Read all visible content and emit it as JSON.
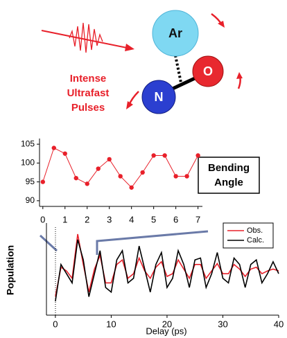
{
  "diagram": {
    "atoms": [
      "Ar",
      "N",
      "O"
    ],
    "pulse_label": [
      "Intense",
      "Ultrafast",
      "Pulses"
    ]
  },
  "chart_data": [
    {
      "type": "line",
      "color": "#e8202a",
      "markers": true,
      "x": [
        0,
        0.5,
        1,
        1.5,
        2,
        2.5,
        3,
        3.5,
        4,
        4.5,
        5,
        5.5,
        6,
        6.5,
        7
      ],
      "values": [
        95,
        104,
        102.5,
        96,
        94.5,
        98.5,
        101,
        96.5,
        93.5,
        97.5,
        102,
        102,
        96.5,
        96.5,
        102
      ],
      "xlim": [
        -0.15,
        7.2
      ],
      "ylim": [
        88.5,
        106.5
      ],
      "xticks": [
        0,
        1,
        2,
        3,
        4,
        5,
        6,
        7
      ],
      "yticks": [
        90,
        95,
        100,
        105
      ],
      "annotation": [
        "Bending",
        "Angle"
      ]
    },
    {
      "type": "line",
      "xlabel": "Delay (ps)",
      "ylabel": "Population",
      "legend": "upper right",
      "x": [
        0,
        1,
        2,
        3,
        4,
        5,
        6,
        7,
        8,
        9,
        10,
        11,
        12,
        13,
        14,
        15,
        16,
        17,
        18,
        19,
        20,
        21,
        22,
        23,
        24,
        25,
        26,
        27,
        28,
        29,
        30,
        31,
        32,
        33,
        34,
        35,
        36,
        37,
        38,
        39,
        40
      ],
      "series": [
        {
          "name": "Obs.",
          "color": "#e8202a",
          "values": [
            0.2,
            0.52,
            0.48,
            0.4,
            0.88,
            0.55,
            0.25,
            0.5,
            0.65,
            0.35,
            0.35,
            0.55,
            0.6,
            0.4,
            0.45,
            0.62,
            0.48,
            0.4,
            0.52,
            0.58,
            0.42,
            0.45,
            0.6,
            0.5,
            0.4,
            0.55,
            0.55,
            0.4,
            0.48,
            0.56,
            0.45,
            0.45,
            0.55,
            0.5,
            0.42,
            0.5,
            0.52,
            0.45,
            0.48,
            0.5,
            0.48
          ]
        },
        {
          "name": "Calc.",
          "color": "#000000",
          "values": [
            0.15,
            0.55,
            0.45,
            0.35,
            0.82,
            0.6,
            0.2,
            0.45,
            0.7,
            0.3,
            0.25,
            0.6,
            0.7,
            0.35,
            0.4,
            0.75,
            0.5,
            0.25,
            0.55,
            0.68,
            0.3,
            0.4,
            0.7,
            0.55,
            0.3,
            0.6,
            0.62,
            0.3,
            0.45,
            0.68,
            0.4,
            0.35,
            0.62,
            0.55,
            0.3,
            0.55,
            0.6,
            0.35,
            0.45,
            0.58,
            0.45
          ]
        }
      ],
      "xlim": [
        -1.6,
        40
      ],
      "ylim": [
        0,
        1
      ],
      "xticks": [
        0,
        10,
        20,
        30,
        40
      ]
    }
  ]
}
